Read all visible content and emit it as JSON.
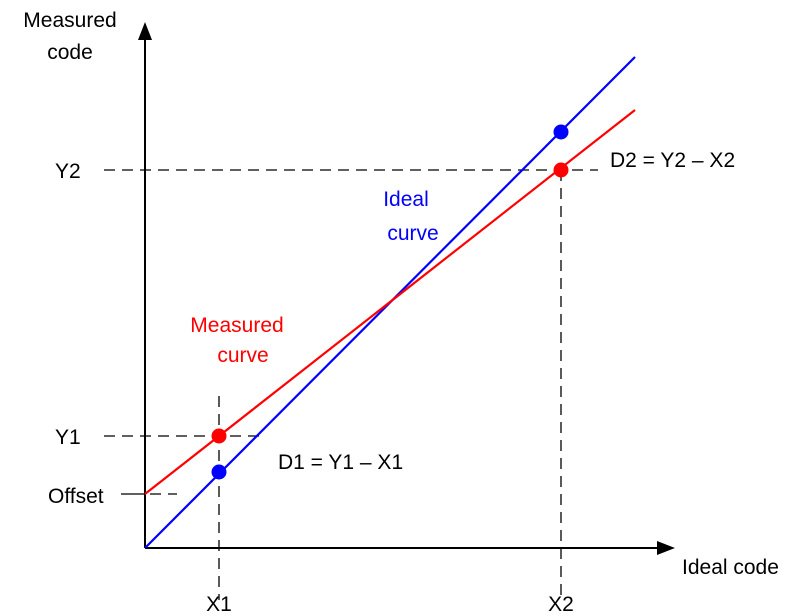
{
  "axes": {
    "y_title_line1": "Measured",
    "y_title_line2": "code",
    "x_title": "Ideal code"
  },
  "ticks": {
    "y2": "Y2",
    "y1": "Y1",
    "offset": "Offset",
    "x1": "X1",
    "x2": "X2"
  },
  "curves": {
    "ideal_line1": "Ideal",
    "ideal_line2": "curve",
    "measured_line1": "Measured",
    "measured_line2": "curve"
  },
  "annotations": {
    "d1": "D1 = Y1 – X1",
    "d2": "D2 = Y2 – X2"
  },
  "colors": {
    "ideal": "#0000ff",
    "measured": "#ff0000",
    "axis": "#000000"
  }
}
